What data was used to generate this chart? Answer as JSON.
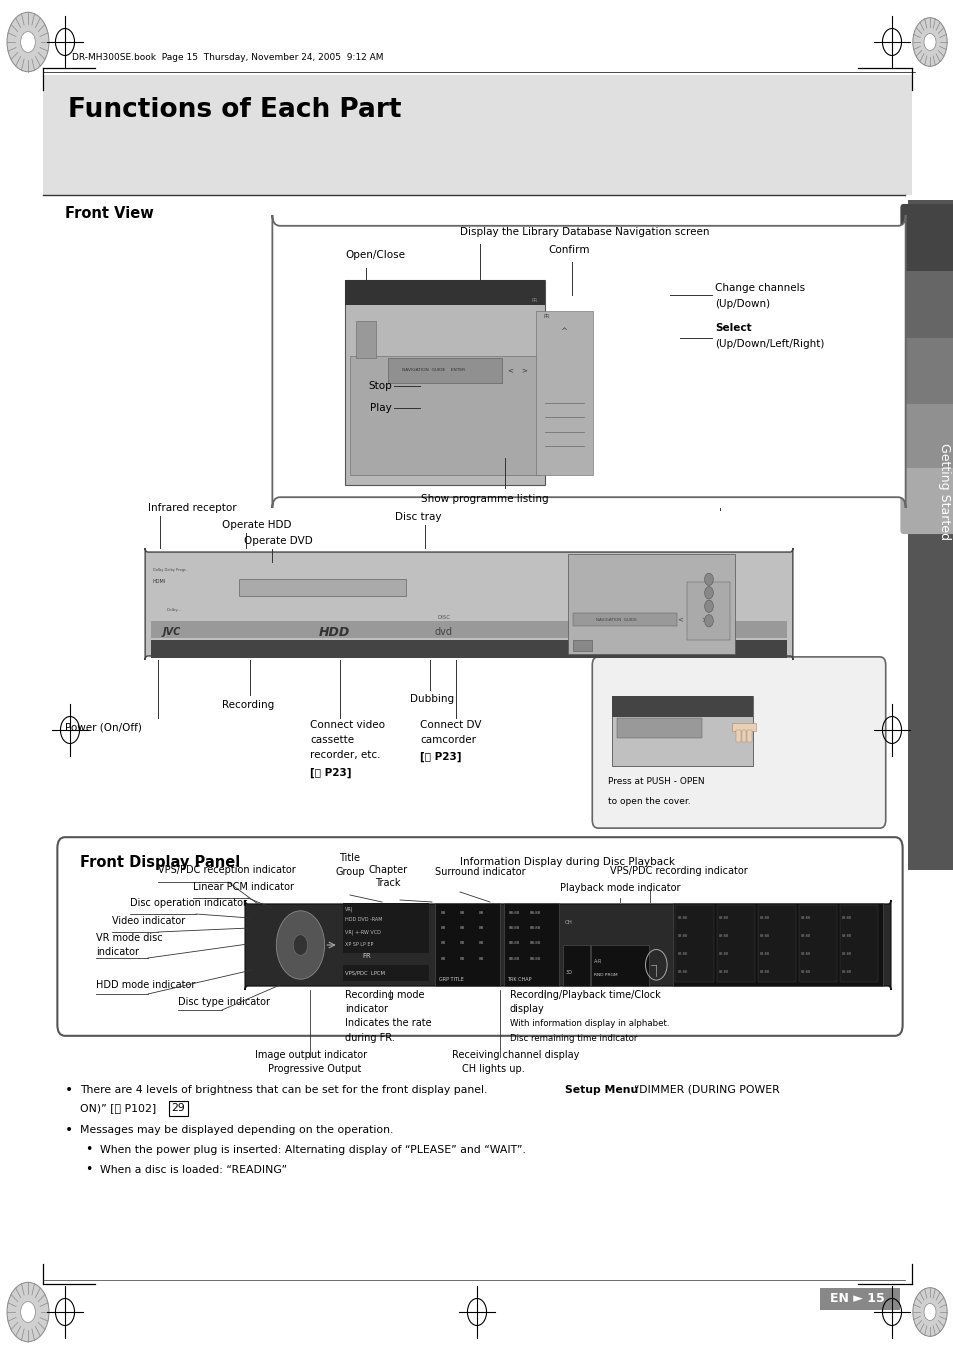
{
  "page_title": "Functions of Each Part",
  "header_text": "DR-MH300SE.book  Page 15  Thursday, November 24, 2005  9:12 AM",
  "section1_title": "Front View",
  "section2_title": "Front Display Panel",
  "side_text": "Getting Started",
  "footer_text": "EN ► 15",
  "white": "#ffffff",
  "black": "#000000",
  "dark_gray": "#444444",
  "mid_gray": "#888888",
  "light_gray": "#cccccc",
  "title_bg": "#e0e0e0",
  "device_color": "#c0c0c0",
  "device_dark": "#555555",
  "panel_border": "#666666"
}
